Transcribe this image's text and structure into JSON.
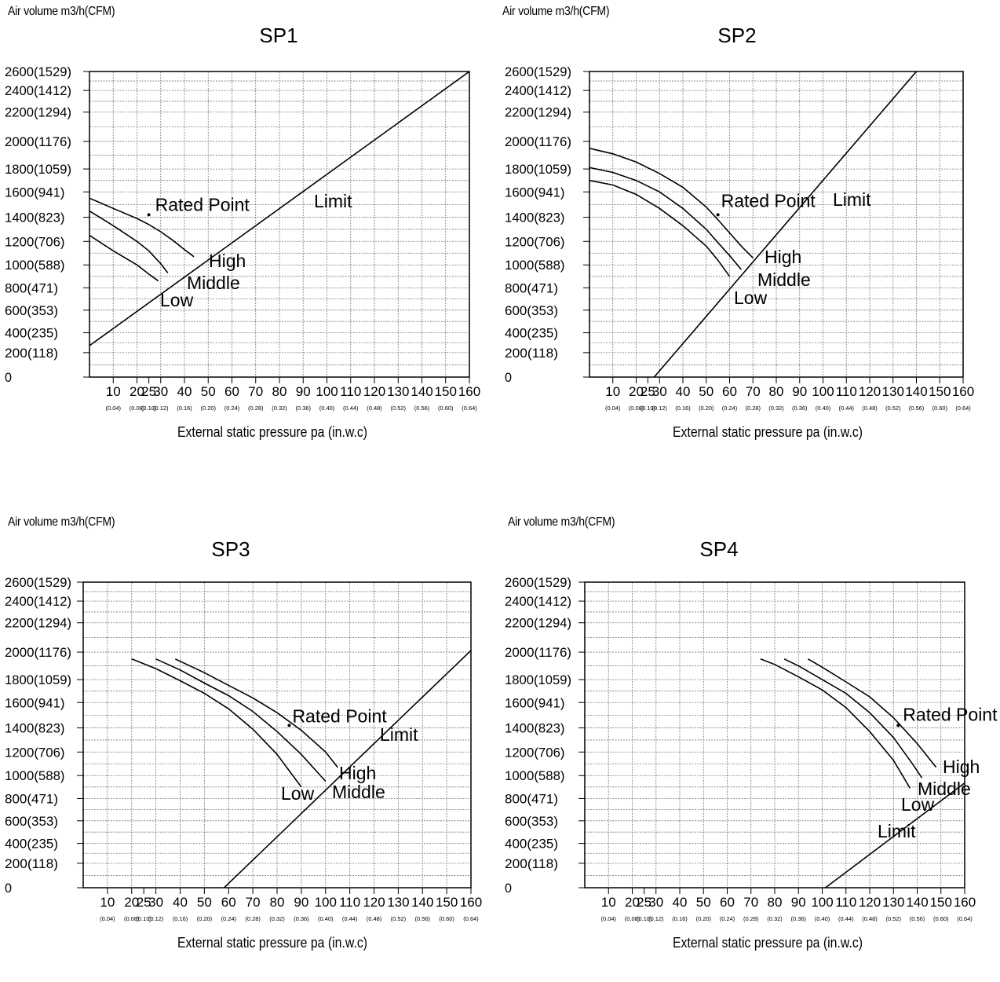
{
  "chart_data": [
    {
      "type": "line",
      "title": "SP1",
      "ylabel": "Air volume m3/h(CFM)",
      "xlabel": "External static pressure pa   (in.w.c)",
      "y_ticks": [
        "2600(1529)",
        "2400(1412)",
        "2200(1294)",
        "2000(1176)",
        "1800(1059)",
        "1600(941)",
        "1400(823)",
        "1200(706)",
        "1000(588)",
        "800(471)",
        "600(353)",
        "400(235)",
        "200(118)",
        "0"
      ],
      "x_ticks": [
        "10",
        "20",
        "25",
        "30",
        "40",
        "50",
        "60",
        "70",
        "80",
        "90",
        "100",
        "110",
        "120",
        "130",
        "140",
        "150",
        "160"
      ],
      "x_ticks_inwc": [
        "(0.04)",
        "(0.08)",
        "(0.10)",
        "(0.12)",
        "(0.16)",
        "(0.20)",
        "(0.24)",
        "(0.28)",
        "(0.32)",
        "(0.36)",
        "(0.40)",
        "(0.44)",
        "(0.48)",
        "(0.52)",
        "(0.56)",
        "(0.60)",
        "(0.64)"
      ],
      "series": [
        {
          "name": "High",
          "x": [
            0,
            10,
            20,
            25,
            30,
            35,
            40,
            44
          ],
          "y": [
            1550,
            1470,
            1390,
            1340,
            1280,
            1210,
            1130,
            1070
          ]
        },
        {
          "name": "Middle",
          "x": [
            0,
            10,
            20,
            25,
            30,
            33
          ],
          "y": [
            1450,
            1330,
            1200,
            1120,
            1010,
            930
          ]
        },
        {
          "name": "Low",
          "x": [
            0,
            10,
            20,
            25,
            29
          ],
          "y": [
            1250,
            1120,
            1000,
            920,
            860
          ]
        },
        {
          "name": "Limit",
          "x": [
            0,
            160
          ],
          "y": [
            270,
            2600
          ]
        }
      ],
      "rated_point": {
        "label": "Rated Point",
        "x": 25,
        "y": 1420
      },
      "annotations": [
        "Limit",
        "High",
        "Middle",
        "Low"
      ]
    },
    {
      "type": "line",
      "title": "SP2",
      "ylabel": "Air volume m3/h(CFM)",
      "xlabel": "External static pressure pa   (in.w.c)",
      "y_ticks": [
        "2600(1529)",
        "2400(1412)",
        "2200(1294)",
        "2000(1176)",
        "1800(1059)",
        "1600(941)",
        "1400(823)",
        "1200(706)",
        "1000(588)",
        "800(471)",
        "600(353)",
        "400(235)",
        "200(118)",
        "0"
      ],
      "x_ticks": [
        "10",
        "20",
        "25",
        "30",
        "40",
        "50",
        "60",
        "70",
        "80",
        "90",
        "100",
        "110",
        "120",
        "130",
        "140",
        "150",
        "160"
      ],
      "x_ticks_inwc": [
        "(0.04)",
        "(0.08)",
        "(0.10)",
        "(0.12)",
        "(0.16)",
        "(0.20)",
        "(0.24)",
        "(0.28)",
        "(0.32)",
        "(0.36)",
        "(0.40)",
        "(0.44)",
        "(0.48)",
        "(0.52)",
        "(0.56)",
        "(0.60)",
        "(0.64)"
      ],
      "series": [
        {
          "name": "High",
          "x": [
            0,
            10,
            20,
            30,
            40,
            50,
            55,
            60,
            65,
            70
          ],
          "y": [
            1950,
            1910,
            1850,
            1760,
            1640,
            1480,
            1380,
            1270,
            1160,
            1060
          ]
        },
        {
          "name": "Middle",
          "x": [
            0,
            10,
            20,
            30,
            40,
            50,
            55,
            60,
            65
          ],
          "y": [
            1810,
            1770,
            1700,
            1600,
            1470,
            1300,
            1190,
            1080,
            960
          ]
        },
        {
          "name": "Low",
          "x": [
            0,
            10,
            20,
            30,
            40,
            50,
            55,
            60
          ],
          "y": [
            1700,
            1660,
            1580,
            1470,
            1330,
            1160,
            1040,
            900
          ]
        },
        {
          "name": "Limit",
          "x": [
            25,
            140
          ],
          "y": [
            -60,
            2600
          ]
        }
      ],
      "rated_point": {
        "label": "Rated Point",
        "x": 55,
        "y": 1420
      },
      "annotations": [
        "Limit",
        "High",
        "Middle",
        "Low"
      ]
    },
    {
      "type": "line",
      "title": "SP3",
      "ylabel": "Air volume m3/h(CFM)",
      "xlabel": "External static pressure pa   (in.w.c)",
      "y_ticks": [
        "2600(1529)",
        "2400(1412)",
        "2200(1294)",
        "2000(1176)",
        "1800(1059)",
        "1600(941)",
        "1400(823)",
        "1200(706)",
        "1000(588)",
        "800(471)",
        "600(353)",
        "400(235)",
        "200(118)",
        "0"
      ],
      "x_ticks": [
        "10",
        "20",
        "25",
        "30",
        "40",
        "50",
        "60",
        "70",
        "80",
        "90",
        "100",
        "110",
        "120",
        "130",
        "140",
        "150",
        "160"
      ],
      "x_ticks_inwc": [
        "(0.04)",
        "(0.08)",
        "(0.10)",
        "(0.12)",
        "(0.16)",
        "(0.20)",
        "(0.24)",
        "(0.28)",
        "(0.32)",
        "(0.36)",
        "(0.40)",
        "(0.44)",
        "(0.48)",
        "(0.52)",
        "(0.56)",
        "(0.60)",
        "(0.64)"
      ],
      "series": [
        {
          "name": "High",
          "x": [
            38,
            50,
            60,
            70,
            80,
            90,
            100,
            105
          ],
          "y": [
            1950,
            1850,
            1750,
            1640,
            1520,
            1380,
            1200,
            1070
          ]
        },
        {
          "name": "Middle",
          "x": [
            30,
            40,
            50,
            60,
            70,
            80,
            90,
            100
          ],
          "y": [
            1950,
            1870,
            1770,
            1660,
            1530,
            1370,
            1180,
            950
          ]
        },
        {
          "name": "Low",
          "x": [
            20,
            30,
            40,
            50,
            60,
            70,
            80,
            90
          ],
          "y": [
            1950,
            1880,
            1790,
            1680,
            1550,
            1390,
            1180,
            900
          ]
        },
        {
          "name": "Limit",
          "x": [
            55,
            170
          ],
          "y": [
            -60,
            2170
          ]
        }
      ],
      "rated_point": {
        "label": "Rated Point",
        "x": 85,
        "y": 1420
      },
      "annotations": [
        "Limit",
        "High",
        "Middle",
        "Low"
      ]
    },
    {
      "type": "line",
      "title": "SP4",
      "ylabel": "Air volume m3/h(CFM)",
      "xlabel": "External static pressure pa   (in.w.c)",
      "y_ticks": [
        "2600(1529)",
        "2400(1412)",
        "2200(1294)",
        "2000(1176)",
        "1800(1059)",
        "1600(941)",
        "1400(823)",
        "1200(706)",
        "1000(588)",
        "800(471)",
        "600(353)",
        "400(235)",
        "200(118)",
        "0"
      ],
      "x_ticks": [
        "10",
        "20",
        "25",
        "30",
        "40",
        "50",
        "60",
        "70",
        "80",
        "90",
        "100",
        "110",
        "120",
        "130",
        "140",
        "150",
        "160"
      ],
      "x_ticks_inwc": [
        "(0.04)",
        "(0.08)",
        "(0.10)",
        "(0.12)",
        "(0.16)",
        "(0.20)",
        "(0.24)",
        "(0.28)",
        "(0.32)",
        "(0.36)",
        "(0.40)",
        "(0.44)",
        "(0.48)",
        "(0.52)",
        "(0.56)",
        "(0.60)",
        "(0.64)"
      ],
      "series": [
        {
          "name": "High",
          "x": [
            94,
            100,
            110,
            120,
            130,
            140,
            148
          ],
          "y": [
            1950,
            1890,
            1780,
            1650,
            1480,
            1270,
            1070
          ]
        },
        {
          "name": "Middle",
          "x": [
            84,
            90,
            100,
            110,
            120,
            130,
            138,
            142
          ],
          "y": [
            1950,
            1900,
            1800,
            1680,
            1520,
            1320,
            1100,
            980
          ]
        },
        {
          "name": "Low",
          "x": [
            74,
            80,
            90,
            100,
            110,
            120,
            130,
            137
          ],
          "y": [
            1950,
            1910,
            1820,
            1710,
            1560,
            1370,
            1130,
            890
          ]
        },
        {
          "name": "Limit",
          "x": [
            100,
            180
          ],
          "y": [
            -20,
            1240
          ]
        }
      ],
      "rated_point": {
        "label": "Rated Point",
        "x": 132,
        "y": 1420
      },
      "annotations": [
        "Limit",
        "High",
        "Middle",
        "Low"
      ]
    }
  ]
}
